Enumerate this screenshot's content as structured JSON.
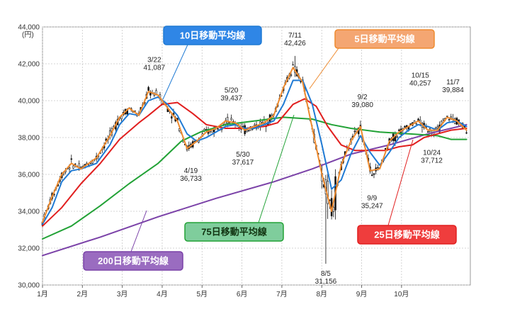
{
  "chart_data": {
    "type": "candlestick+line",
    "unit": "(円)",
    "ylim": [
      30000,
      44000
    ],
    "yticks": [
      "44,000",
      "42,000",
      "40,000",
      "38,000",
      "36,000",
      "34,000",
      "32,000",
      "30,000"
    ],
    "months": [
      "1月",
      "2月",
      "3月",
      "4月",
      "5月",
      "6月",
      "7月",
      "8月",
      "9月",
      "10月"
    ],
    "annotations": [
      {
        "date": "3/22",
        "value": "41,087",
        "day": 58,
        "y": 41087,
        "pos": "above"
      },
      {
        "date": "4/19",
        "value": "36,733",
        "day": 77,
        "y": 36733,
        "pos": "below"
      },
      {
        "date": "5/20",
        "value": "39,437",
        "day": 98,
        "y": 39437,
        "pos": "above"
      },
      {
        "date": "5/30",
        "value": "37,617",
        "day": 104,
        "y": 37617,
        "pos": "below"
      },
      {
        "date": "7/11",
        "value": "42,426",
        "day": 131,
        "y": 42426,
        "pos": "above"
      },
      {
        "date": "8/5",
        "value": "31,156",
        "day": 147,
        "y": 31156,
        "pos": "below"
      },
      {
        "date": "9/2",
        "value": "39,080",
        "day": 166,
        "y": 39080,
        "pos": "above"
      },
      {
        "date": "9/9",
        "value": "35,247",
        "day": 171,
        "y": 35247,
        "pos": "below"
      },
      {
        "date": "10/15",
        "value": "40,257",
        "day": 196,
        "y": 40257,
        "pos": "above"
      },
      {
        "date": "10/24",
        "value": "37,712",
        "day": 202,
        "y": 37712,
        "pos": "below"
      },
      {
        "date": "11/7",
        "value": "39,884",
        "day": 213,
        "y": 39884,
        "pos": "above"
      }
    ],
    "series": [
      {
        "name": "5日移動平均線",
        "color": "#ee8a2e",
        "points": [
          [
            0,
            33400
          ],
          [
            5,
            34800
          ],
          [
            10,
            36000
          ],
          [
            15,
            36600
          ],
          [
            20,
            36300
          ],
          [
            28,
            36900
          ],
          [
            35,
            38100
          ],
          [
            40,
            39100
          ],
          [
            45,
            39600
          ],
          [
            50,
            39200
          ],
          [
            55,
            40500
          ],
          [
            60,
            40300
          ],
          [
            65,
            39600
          ],
          [
            70,
            38900
          ],
          [
            75,
            37400
          ],
          [
            80,
            37800
          ],
          [
            85,
            38300
          ],
          [
            90,
            38500
          ],
          [
            95,
            38900
          ],
          [
            100,
            38800
          ],
          [
            105,
            38400
          ],
          [
            110,
            38600
          ],
          [
            115,
            38800
          ],
          [
            120,
            39200
          ],
          [
            125,
            40700
          ],
          [
            130,
            41800
          ],
          [
            135,
            41000
          ],
          [
            140,
            38500
          ],
          [
            145,
            36000
          ],
          [
            150,
            34000
          ],
          [
            155,
            36500
          ],
          [
            160,
            37800
          ],
          [
            165,
            38600
          ],
          [
            170,
            36200
          ],
          [
            175,
            36300
          ],
          [
            180,
            37800
          ],
          [
            185,
            38300
          ],
          [
            190,
            38600
          ],
          [
            195,
            38900
          ],
          [
            200,
            38400
          ],
          [
            205,
            38400
          ],
          [
            210,
            39100
          ],
          [
            215,
            38900
          ],
          [
            220,
            38400
          ]
        ]
      },
      {
        "name": "10日移動平均線",
        "color": "#1f7ad4",
        "points": [
          [
            0,
            33300
          ],
          [
            5,
            34200
          ],
          [
            10,
            35600
          ],
          [
            15,
            36200
          ],
          [
            20,
            36300
          ],
          [
            28,
            36600
          ],
          [
            35,
            37600
          ],
          [
            40,
            38700
          ],
          [
            45,
            39300
          ],
          [
            50,
            39200
          ],
          [
            55,
            40000
          ],
          [
            60,
            40200
          ],
          [
            65,
            39800
          ],
          [
            70,
            39200
          ],
          [
            75,
            38200
          ],
          [
            80,
            37800
          ],
          [
            85,
            38000
          ],
          [
            90,
            38300
          ],
          [
            95,
            38600
          ],
          [
            100,
            38700
          ],
          [
            105,
            38500
          ],
          [
            110,
            38500
          ],
          [
            115,
            38700
          ],
          [
            120,
            38900
          ],
          [
            125,
            39800
          ],
          [
            130,
            41100
          ],
          [
            135,
            41100
          ],
          [
            140,
            39800
          ],
          [
            145,
            37600
          ],
          [
            150,
            35200
          ],
          [
            155,
            35700
          ],
          [
            160,
            37100
          ],
          [
            165,
            38100
          ],
          [
            170,
            37200
          ],
          [
            175,
            36500
          ],
          [
            180,
            37200
          ],
          [
            185,
            38000
          ],
          [
            190,
            38400
          ],
          [
            195,
            38700
          ],
          [
            200,
            38600
          ],
          [
            205,
            38400
          ],
          [
            210,
            38800
          ],
          [
            215,
            38900
          ],
          [
            220,
            38600
          ]
        ]
      },
      {
        "name": "25日移動平均線",
        "color": "#e11f1f",
        "points": [
          [
            0,
            33200
          ],
          [
            10,
            34200
          ],
          [
            20,
            35500
          ],
          [
            30,
            36600
          ],
          [
            40,
            37900
          ],
          [
            50,
            38800
          ],
          [
            55,
            39200
          ],
          [
            62,
            39800
          ],
          [
            70,
            39900
          ],
          [
            78,
            39300
          ],
          [
            85,
            38700
          ],
          [
            95,
            38500
          ],
          [
            105,
            38500
          ],
          [
            115,
            38600
          ],
          [
            122,
            38800
          ],
          [
            130,
            39800
          ],
          [
            136,
            40100
          ],
          [
            142,
            39700
          ],
          [
            148,
            38600
          ],
          [
            155,
            37600
          ],
          [
            162,
            37300
          ],
          [
            170,
            37300
          ],
          [
            178,
            37300
          ],
          [
            185,
            37500
          ],
          [
            192,
            37600
          ],
          [
            198,
            38000
          ],
          [
            205,
            38200
          ],
          [
            212,
            38400
          ],
          [
            220,
            38500
          ]
        ]
      },
      {
        "name": "75日移動平均線",
        "color": "#22a236",
        "points": [
          [
            0,
            32500
          ],
          [
            15,
            33200
          ],
          [
            30,
            34300
          ],
          [
            45,
            35500
          ],
          [
            60,
            36600
          ],
          [
            72,
            37800
          ],
          [
            82,
            38300
          ],
          [
            95,
            38700
          ],
          [
            110,
            38900
          ],
          [
            125,
            39100
          ],
          [
            140,
            39000
          ],
          [
            150,
            38700
          ],
          [
            160,
            38500
          ],
          [
            175,
            38300
          ],
          [
            190,
            38200
          ],
          [
            205,
            38100
          ],
          [
            212,
            37900
          ],
          [
            220,
            37900
          ]
        ]
      },
      {
        "name": "200日移動平均線",
        "color": "#7b42a8",
        "points": [
          [
            0,
            31600
          ],
          [
            30,
            32600
          ],
          [
            60,
            33700
          ],
          [
            90,
            34700
          ],
          [
            120,
            35600
          ],
          [
            140,
            36300
          ],
          [
            160,
            37100
          ],
          [
            180,
            37600
          ],
          [
            200,
            38200
          ],
          [
            220,
            38700
          ]
        ]
      }
    ],
    "legend_labels": [
      {
        "text": "10日移動平均線",
        "color": "#1f7ad4"
      },
      {
        "text": "5日移動平均線",
        "color": "#ee8a2e"
      },
      {
        "text": "75日移動平均線",
        "color": "#22a236"
      },
      {
        "text": "25日移動平均線",
        "color": "#e11f1f"
      },
      {
        "text": "200日移動平均線",
        "color": "#7b42a8"
      }
    ],
    "grid": true,
    "x_range_days": [
      0,
      222
    ]
  }
}
